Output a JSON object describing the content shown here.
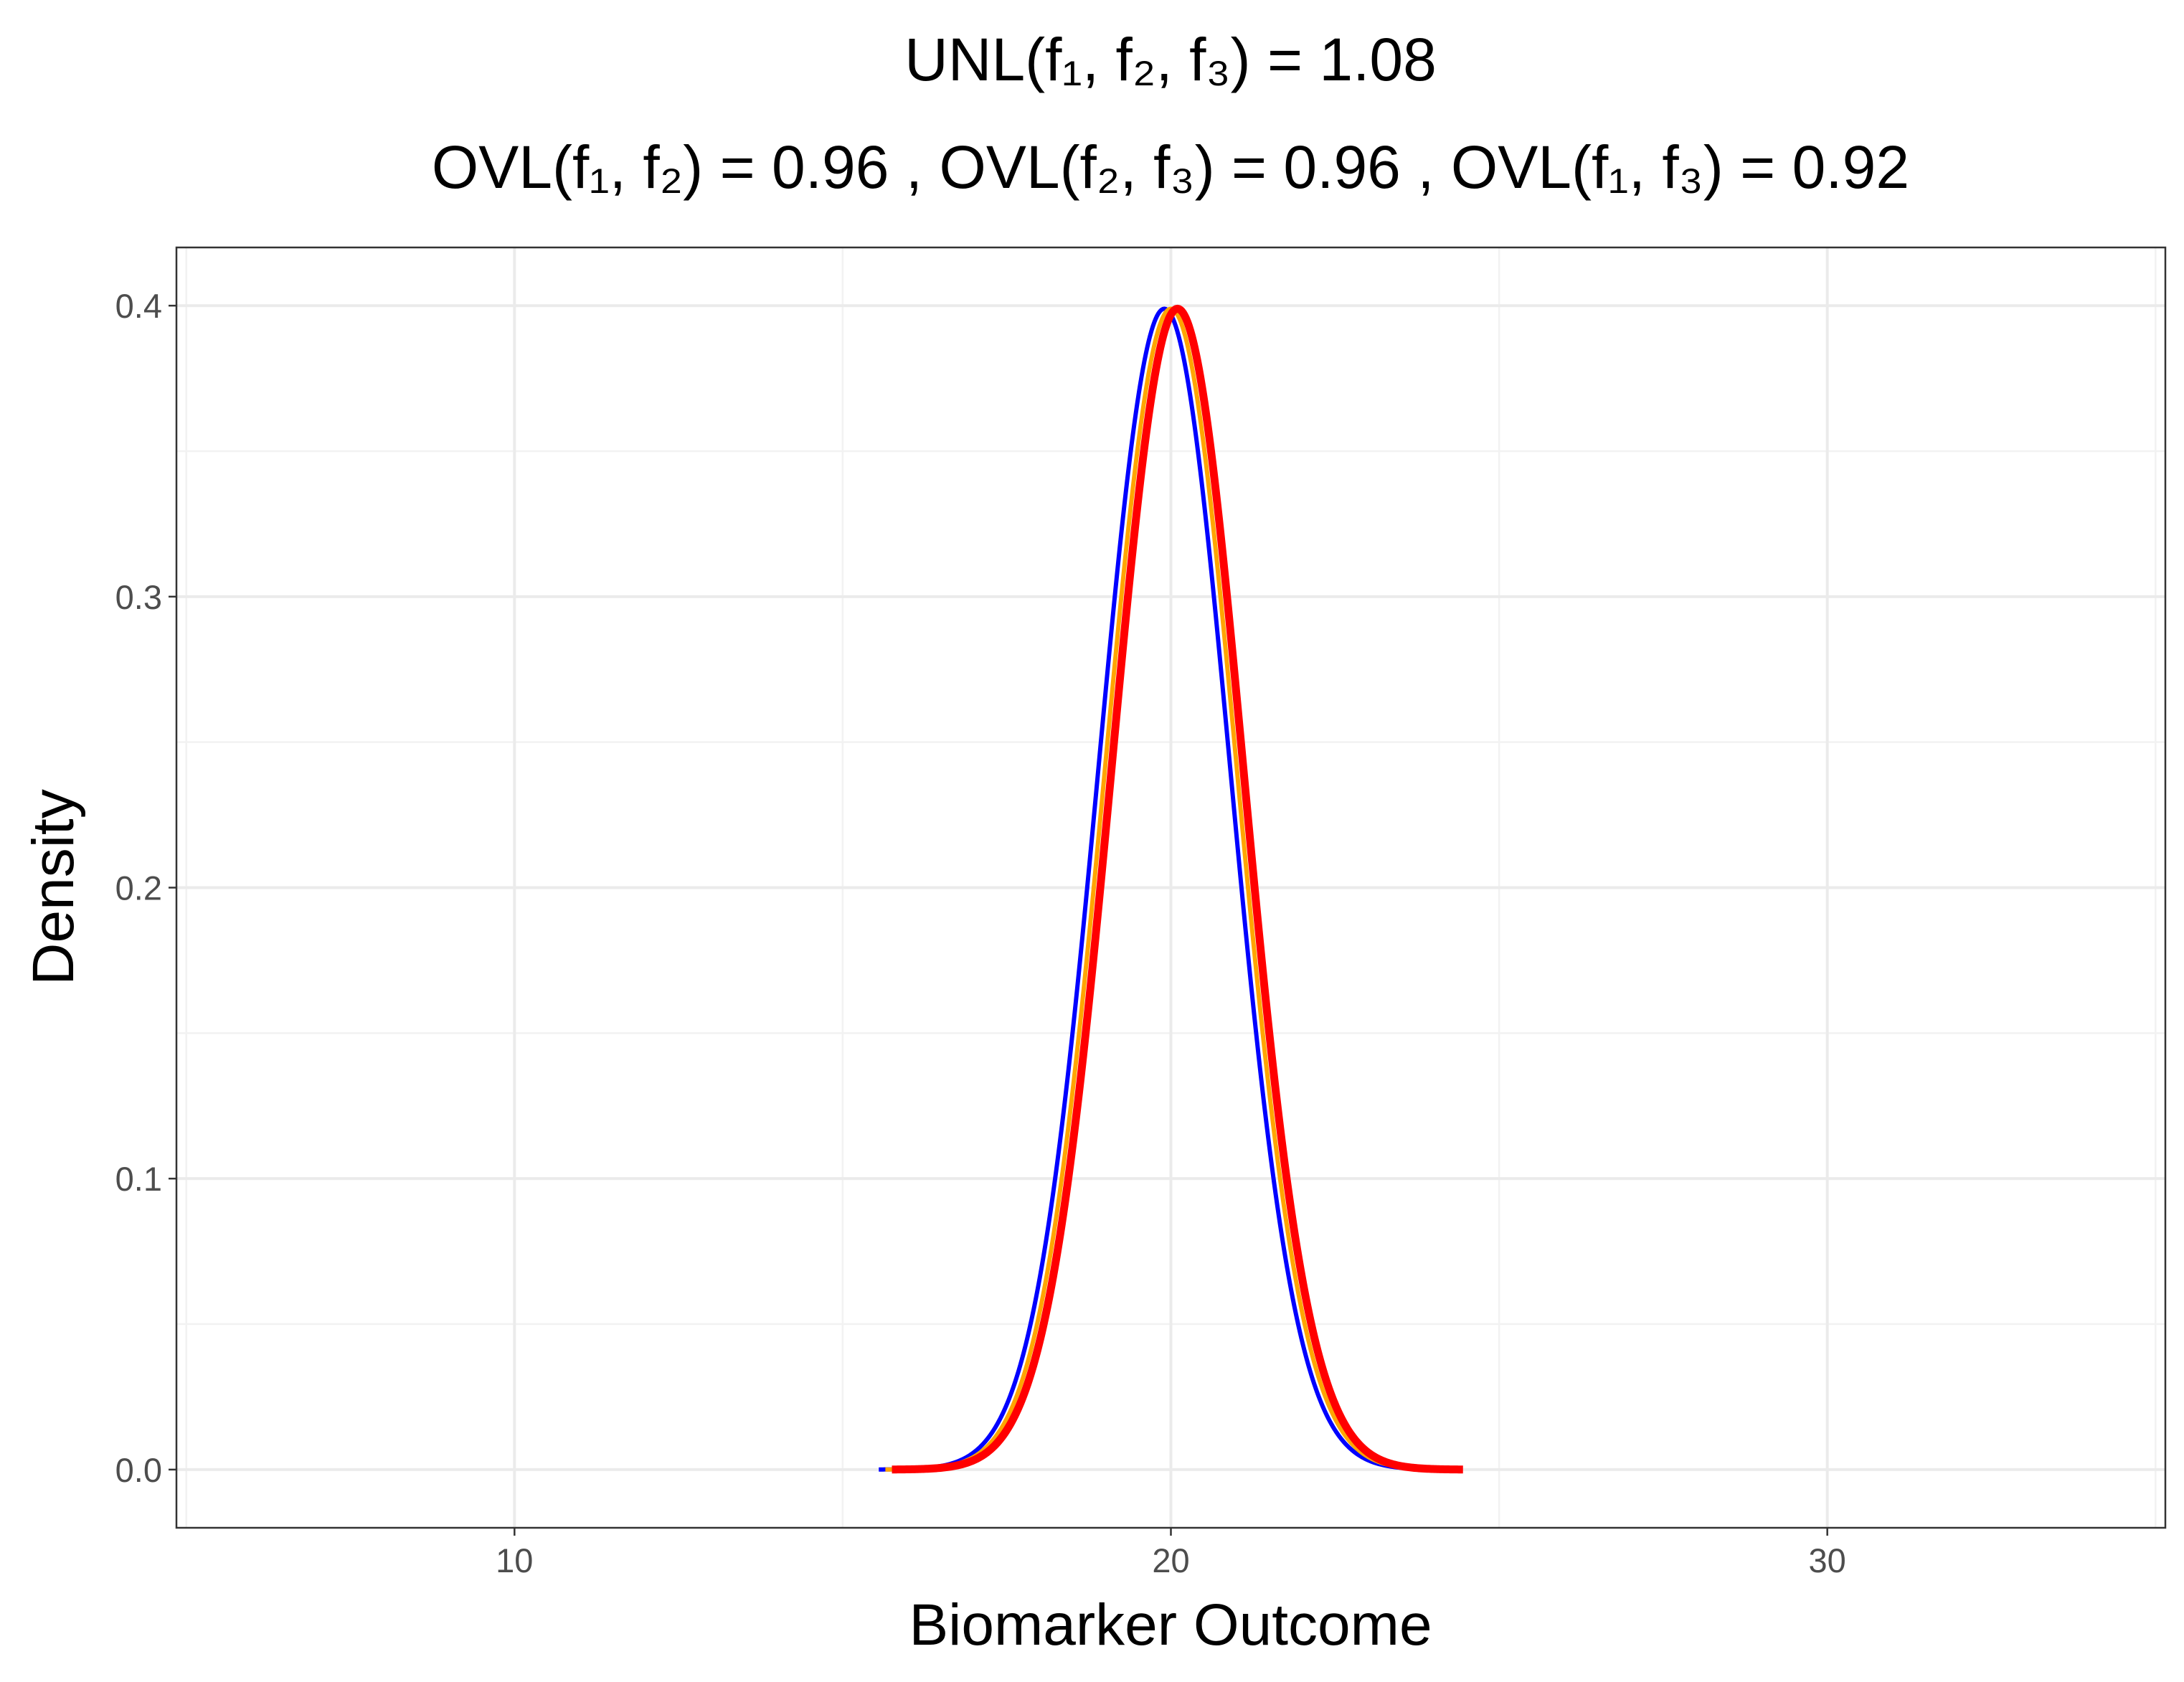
{
  "chart_data": {
    "type": "line",
    "title_line1": "UNL(f₁, f₂, f₃) = 1.08",
    "title_line2": "OVL(f₁, f₂) = 0.96 , OVL(f₂, f₃) = 0.96 , OVL(f₁, f₃) = 0.92",
    "xlabel": "Biomarker Outcome",
    "ylabel": "Density",
    "xlim": [
      4.85,
      35.15
    ],
    "ylim": [
      -0.02,
      0.42
    ],
    "x_ticks": [
      {
        "value": 10,
        "label": "10"
      },
      {
        "value": 20,
        "label": "20"
      },
      {
        "value": 30,
        "label": "30"
      }
    ],
    "x_minor": [
      5,
      15,
      25,
      35
    ],
    "y_ticks": [
      {
        "value": 0.0,
        "label": "0.0"
      },
      {
        "value": 0.1,
        "label": "0.1"
      },
      {
        "value": 0.2,
        "label": "0.2"
      },
      {
        "value": 0.3,
        "label": "0.3"
      },
      {
        "value": 0.4,
        "label": "0.4"
      }
    ],
    "y_minor": [
      0.05,
      0.15,
      0.25,
      0.35
    ],
    "grid": true,
    "legend": "none",
    "series": [
      {
        "color": "#0000FF",
        "distribution": "normal",
        "mean": 19.9,
        "sd": 1.0,
        "x_range": [
          15.55,
          24.25
        ],
        "width": "thin"
      },
      {
        "color": "#FFA500",
        "distribution": "normal",
        "mean": 20.0,
        "sd": 1.0,
        "x_range": [
          15.65,
          24.35
        ],
        "width": "thin"
      },
      {
        "color": "#FF0000",
        "distribution": "normal",
        "mean": 20.1,
        "sd": 1.0,
        "x_range": [
          15.75,
          24.45
        ],
        "width": "thick"
      }
    ]
  }
}
